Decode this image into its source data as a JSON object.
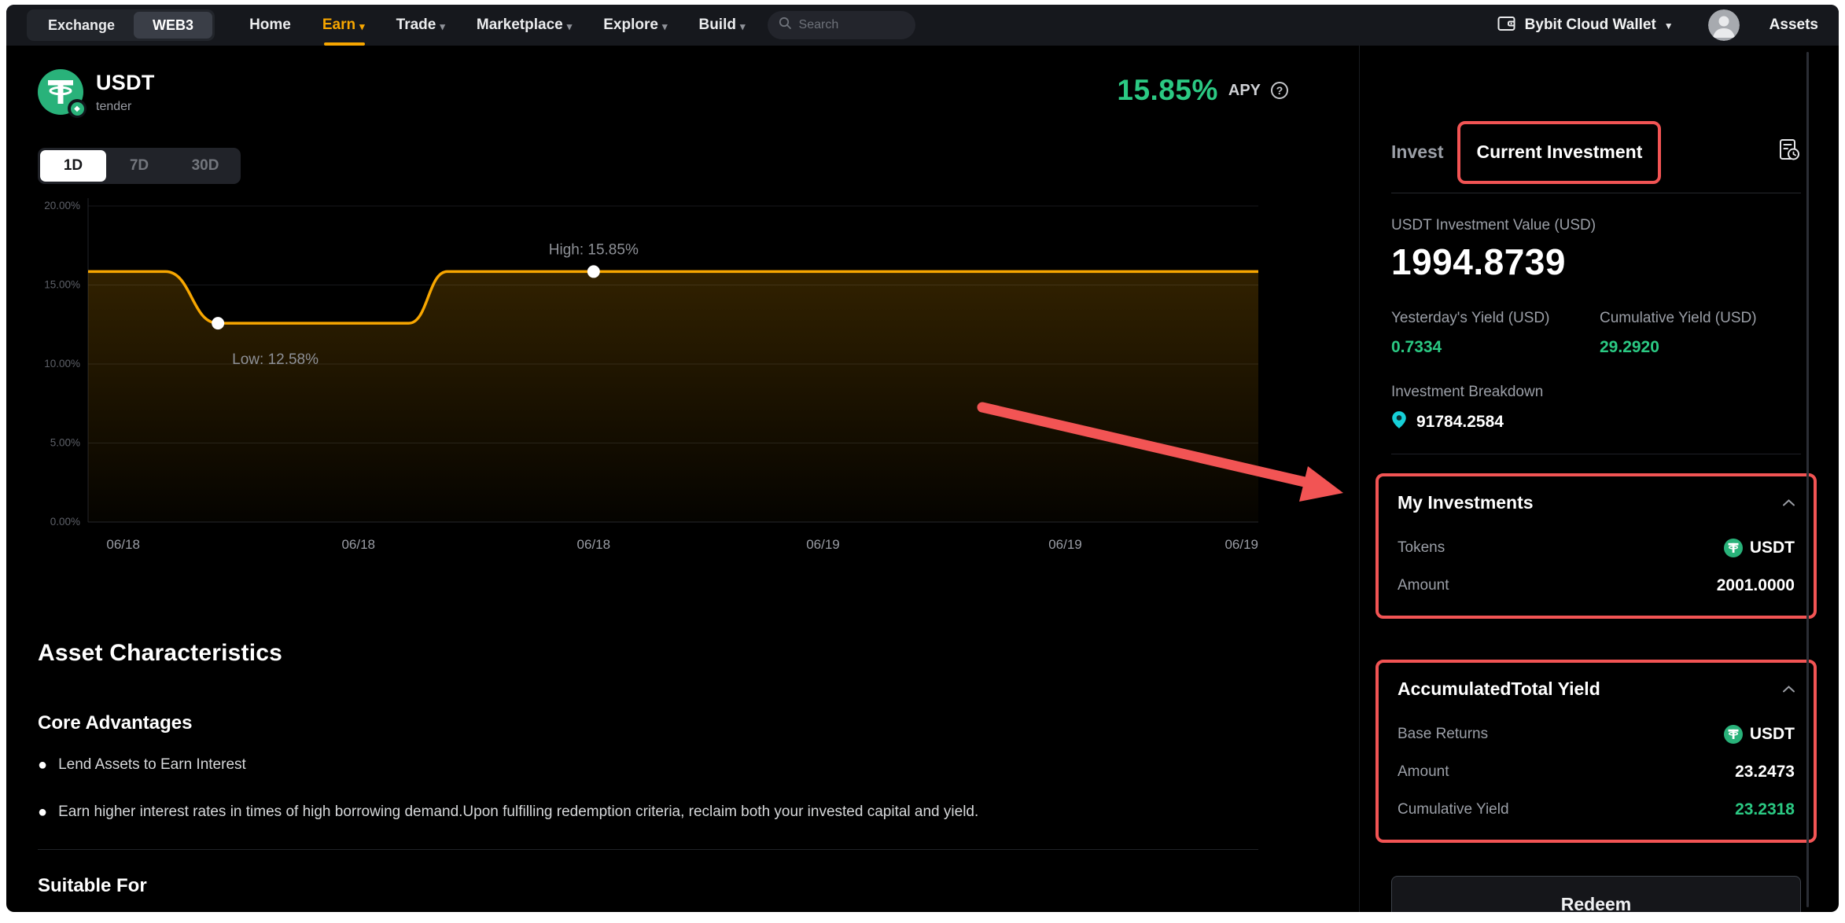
{
  "nav": {
    "mode_toggle": {
      "options": [
        "Exchange",
        "WEB3"
      ],
      "active": "WEB3"
    },
    "items": [
      {
        "label": "Home"
      },
      {
        "label": "Earn"
      },
      {
        "label": "Trade"
      },
      {
        "label": "Marketplace"
      },
      {
        "label": "Explore"
      },
      {
        "label": "Build"
      }
    ],
    "search_placeholder": "Search",
    "wallet_label": "Bybit Cloud Wallet",
    "assets_label": "Assets"
  },
  "asset": {
    "symbol": "USDT",
    "subtitle": "tender",
    "apy_value": "15.85%",
    "apy_label": "APY"
  },
  "chart_data": {
    "type": "line",
    "title": "USDT APY history",
    "periods": [
      "1D",
      "7D",
      "30D"
    ],
    "active_period": "1D",
    "ylim": [
      0,
      20
    ],
    "y_ticks": [
      0,
      5,
      10,
      15,
      20
    ],
    "y_tick_labels": [
      "0.00%",
      "5.00%",
      "10.00%",
      "15.00%",
      "20.00%"
    ],
    "x_labels": [
      {
        "label": "06/18",
        "x": 0.03
      },
      {
        "label": "06/18",
        "x": 0.231
      },
      {
        "label": "06/18",
        "x": 0.432
      },
      {
        "label": "06/19",
        "x": 0.628
      },
      {
        "label": "06/19",
        "x": 0.835
      },
      {
        "label": "06/19",
        "x": 1.0
      }
    ],
    "series": [
      {
        "name": "APY",
        "color": "#f7a600",
        "points": [
          [
            0,
            15.85
          ],
          [
            0.066,
            15.85
          ],
          [
            0.111,
            12.58
          ],
          [
            0.274,
            12.58
          ],
          [
            0.307,
            15.85
          ],
          [
            1,
            15.85
          ]
        ]
      }
    ],
    "high": {
      "label": "High: 15.85%",
      "value": 15.85,
      "x": 0.432
    },
    "low": {
      "label": "Low: 12.58%",
      "value": 12.58,
      "x": 0.111
    },
    "grid": true,
    "legend": "none"
  },
  "characteristics": {
    "title": "Asset Characteristics",
    "subtitle": "Core Advantages",
    "bullets": [
      "Lend Assets to Earn Interest",
      "Earn higher interest rates in times of high borrowing demand.Upon fulfilling redemption criteria, reclaim both your invested capital and yield."
    ],
    "suitable_for": "Suitable For"
  },
  "panel": {
    "tabs": {
      "invest": "Invest",
      "current": "Current Investment"
    },
    "investment_value_label": "USDT Investment Value (USD)",
    "investment_value": "1994.8739",
    "yesterday_label": "Yesterday's Yield (USD)",
    "yesterday_value": "0.7334",
    "cumulative_label": "Cumulative Yield (USD)",
    "cumulative_value": "29.2920",
    "breakdown_label": "Investment Breakdown",
    "breakdown_value": "91784.2584",
    "my_investments": {
      "title": "My Investments",
      "tokens_label": "Tokens",
      "tokens_value": "USDT",
      "amount_label": "Amount",
      "amount_value": "2001.0000"
    },
    "accumulated": {
      "title": "AccumulatedTotal Yield",
      "base_label": "Base Returns",
      "base_value": "USDT",
      "amount_label": "Amount",
      "amount_value": "23.2473",
      "cy_label": "Cumulative Yield",
      "cy_value": "23.2318"
    },
    "redeem_label": "Redeem"
  },
  "colors": {
    "accent_orange": "#f7a600",
    "green": "#2bc983",
    "tether_green": "#29b27a",
    "annotation_red": "#f25454",
    "cyan": "#16d0d8",
    "nav_bg": "#16181d",
    "page_bg": "#000000"
  }
}
